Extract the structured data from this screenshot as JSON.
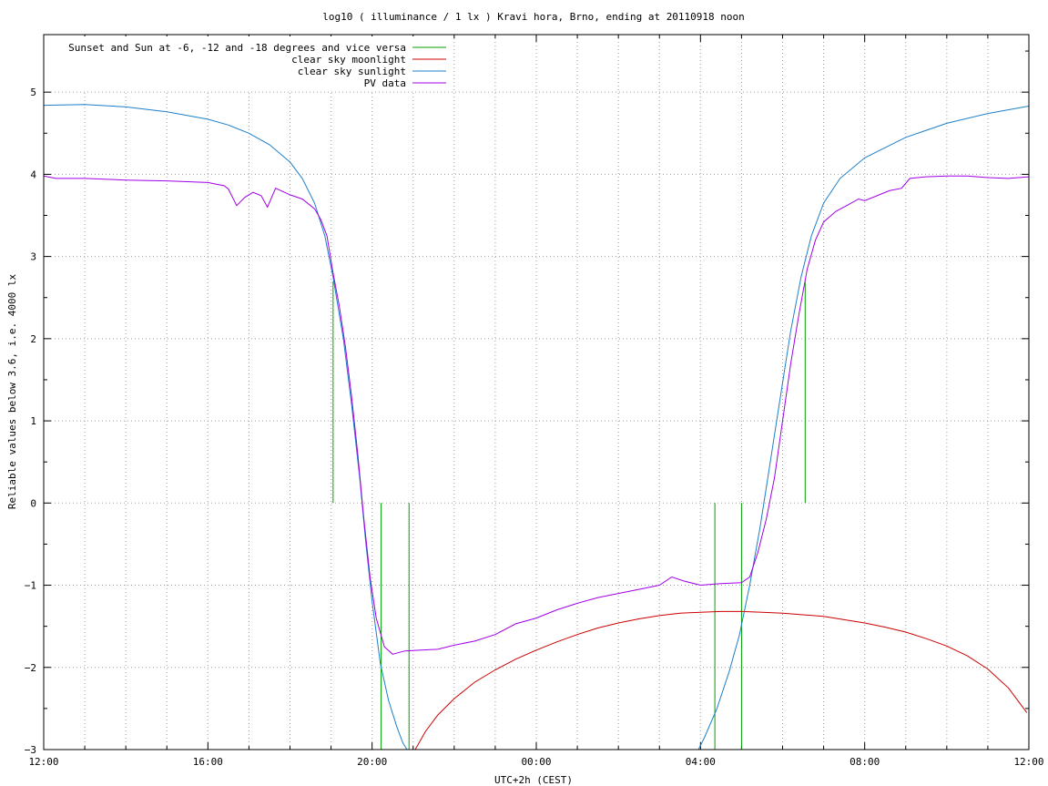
{
  "chart_data": {
    "type": "line",
    "title": "log10 ( illuminance / 1 lx ) Kravi hora, Brno, ending at 20110918 noon",
    "xlabel": "UTC+2h (CEST)",
    "ylabel": "Reliable values below 3.6, i.e. 4000 lx",
    "xlim": [
      0,
      24
    ],
    "ylim": [
      -3,
      5.7
    ],
    "x_unit": "hours since 12:00 UTC+2h",
    "xticks": [
      {
        "x": 0,
        "label": "12:00"
      },
      {
        "x": 4,
        "label": "16:00"
      },
      {
        "x": 8,
        "label": "20:00"
      },
      {
        "x": 12,
        "label": "00:00"
      },
      {
        "x": 16,
        "label": "04:00"
      },
      {
        "x": 20,
        "label": "08:00"
      },
      {
        "x": 24,
        "label": "12:00"
      }
    ],
    "yticks": [
      -3,
      -2,
      -1,
      0,
      1,
      2,
      3,
      4,
      5
    ],
    "grid": true,
    "legend_position": "top-left",
    "colors": {
      "twilight": "#00a000",
      "moon": "#cc0000",
      "sun": "#1e7fc8",
      "pv": "#a000e6"
    },
    "series": [
      {
        "name": "Sunset and Sun at -6, -12 and -18 degrees and vice versa",
        "key": "twilight",
        "segments": [
          {
            "x": 7.05,
            "y0": 0,
            "y1": 2.7
          },
          {
            "x": 8.22,
            "y0": -3,
            "y1": 0
          },
          {
            "x": 8.9,
            "y0": -3,
            "y1": 0
          },
          {
            "x": 16.35,
            "y0": -3,
            "y1": 0
          },
          {
            "x": 17.0,
            "y0": -3,
            "y1": 0
          },
          {
            "x": 18.55,
            "y0": 0,
            "y1": 2.7
          }
        ]
      },
      {
        "name": "clear sky moonlight",
        "key": "moon",
        "points": [
          [
            9.05,
            -3
          ],
          [
            9.3,
            -2.78
          ],
          [
            9.6,
            -2.58
          ],
          [
            10.0,
            -2.38
          ],
          [
            10.5,
            -2.18
          ],
          [
            11.0,
            -2.03
          ],
          [
            11.5,
            -1.9
          ],
          [
            12.0,
            -1.79
          ],
          [
            12.5,
            -1.69
          ],
          [
            13.0,
            -1.6
          ],
          [
            13.5,
            -1.52
          ],
          [
            14.0,
            -1.46
          ],
          [
            14.5,
            -1.41
          ],
          [
            15.0,
            -1.37
          ],
          [
            15.5,
            -1.34
          ],
          [
            16.0,
            -1.33
          ],
          [
            16.5,
            -1.32
          ],
          [
            17.0,
            -1.32
          ],
          [
            17.5,
            -1.33
          ],
          [
            18.0,
            -1.34
          ],
          [
            18.5,
            -1.36
          ],
          [
            19.0,
            -1.38
          ],
          [
            19.5,
            -1.42
          ],
          [
            20.0,
            -1.46
          ],
          [
            20.5,
            -1.51
          ],
          [
            21.0,
            -1.57
          ],
          [
            21.5,
            -1.65
          ],
          [
            22.0,
            -1.74
          ],
          [
            22.5,
            -1.86
          ],
          [
            23.0,
            -2.02
          ],
          [
            23.5,
            -2.25
          ],
          [
            23.95,
            -2.55
          ]
        ]
      },
      {
        "name": "clear sky sunlight",
        "key": "sun",
        "points": [
          [
            0,
            4.84
          ],
          [
            1,
            4.85
          ],
          [
            2,
            4.82
          ],
          [
            3,
            4.76
          ],
          [
            4,
            4.67
          ],
          [
            4.5,
            4.6
          ],
          [
            5,
            4.5
          ],
          [
            5.5,
            4.36
          ],
          [
            6,
            4.15
          ],
          [
            6.3,
            3.95
          ],
          [
            6.6,
            3.65
          ],
          [
            6.85,
            3.25
          ],
          [
            7.05,
            2.75
          ],
          [
            7.3,
            2.0
          ],
          [
            7.5,
            1.2
          ],
          [
            7.7,
            0.3
          ],
          [
            7.85,
            -0.5
          ],
          [
            8.0,
            -1.2
          ],
          [
            8.2,
            -1.95
          ],
          [
            8.4,
            -2.4
          ],
          [
            8.6,
            -2.72
          ],
          [
            8.75,
            -2.92
          ],
          [
            8.85,
            -3
          ],
          [
            15.95,
            -3
          ],
          [
            16.1,
            -2.85
          ],
          [
            16.4,
            -2.5
          ],
          [
            16.7,
            -2.05
          ],
          [
            16.95,
            -1.6
          ],
          [
            17.2,
            -1.0
          ],
          [
            17.45,
            -0.3
          ],
          [
            17.7,
            0.5
          ],
          [
            17.95,
            1.3
          ],
          [
            18.2,
            2.1
          ],
          [
            18.45,
            2.75
          ],
          [
            18.7,
            3.25
          ],
          [
            19.0,
            3.65
          ],
          [
            19.4,
            3.95
          ],
          [
            20.0,
            4.2
          ],
          [
            21.0,
            4.45
          ],
          [
            22.0,
            4.62
          ],
          [
            23.0,
            4.74
          ],
          [
            24.0,
            4.83
          ]
        ]
      },
      {
        "name": "PV data",
        "key": "pv",
        "points": [
          [
            0,
            3.98
          ],
          [
            0.3,
            3.95
          ],
          [
            1,
            3.95
          ],
          [
            2,
            3.93
          ],
          [
            3,
            3.92
          ],
          [
            4,
            3.9
          ],
          [
            4.4,
            3.86
          ],
          [
            4.5,
            3.82
          ],
          [
            4.7,
            3.62
          ],
          [
            4.9,
            3.72
          ],
          [
            5.1,
            3.78
          ],
          [
            5.3,
            3.74
          ],
          [
            5.45,
            3.6
          ],
          [
            5.65,
            3.83
          ],
          [
            6.0,
            3.75
          ],
          [
            6.3,
            3.7
          ],
          [
            6.6,
            3.58
          ],
          [
            6.75,
            3.45
          ],
          [
            6.9,
            3.25
          ],
          [
            7.05,
            2.8
          ],
          [
            7.2,
            2.4
          ],
          [
            7.35,
            1.9
          ],
          [
            7.5,
            1.3
          ],
          [
            7.65,
            0.6
          ],
          [
            7.8,
            -0.2
          ],
          [
            7.95,
            -0.9
          ],
          [
            8.1,
            -1.4
          ],
          [
            8.3,
            -1.75
          ],
          [
            8.5,
            -1.84
          ],
          [
            8.8,
            -1.8
          ],
          [
            9.2,
            -1.79
          ],
          [
            9.6,
            -1.78
          ],
          [
            10.0,
            -1.73
          ],
          [
            10.5,
            -1.68
          ],
          [
            11.0,
            -1.6
          ],
          [
            11.5,
            -1.47
          ],
          [
            12.0,
            -1.4
          ],
          [
            12.5,
            -1.3
          ],
          [
            13.0,
            -1.22
          ],
          [
            13.5,
            -1.15
          ],
          [
            14.0,
            -1.1
          ],
          [
            14.5,
            -1.05
          ],
          [
            15.0,
            -1.0
          ],
          [
            15.3,
            -0.9
          ],
          [
            15.6,
            -0.95
          ],
          [
            16.0,
            -1.0
          ],
          [
            16.5,
            -0.98
          ],
          [
            17.0,
            -0.97
          ],
          [
            17.2,
            -0.9
          ],
          [
            17.4,
            -0.6
          ],
          [
            17.6,
            -0.2
          ],
          [
            17.8,
            0.3
          ],
          [
            18.0,
            1.0
          ],
          [
            18.2,
            1.7
          ],
          [
            18.4,
            2.3
          ],
          [
            18.6,
            2.85
          ],
          [
            18.8,
            3.2
          ],
          [
            19.0,
            3.42
          ],
          [
            19.3,
            3.55
          ],
          [
            19.6,
            3.63
          ],
          [
            19.85,
            3.7
          ],
          [
            20.0,
            3.68
          ],
          [
            20.3,
            3.74
          ],
          [
            20.6,
            3.8
          ],
          [
            20.9,
            3.83
          ],
          [
            21.1,
            3.95
          ],
          [
            21.5,
            3.97
          ],
          [
            22.0,
            3.98
          ],
          [
            22.5,
            3.98
          ],
          [
            23.0,
            3.96
          ],
          [
            23.5,
            3.95
          ],
          [
            24.0,
            3.97
          ]
        ]
      }
    ]
  }
}
